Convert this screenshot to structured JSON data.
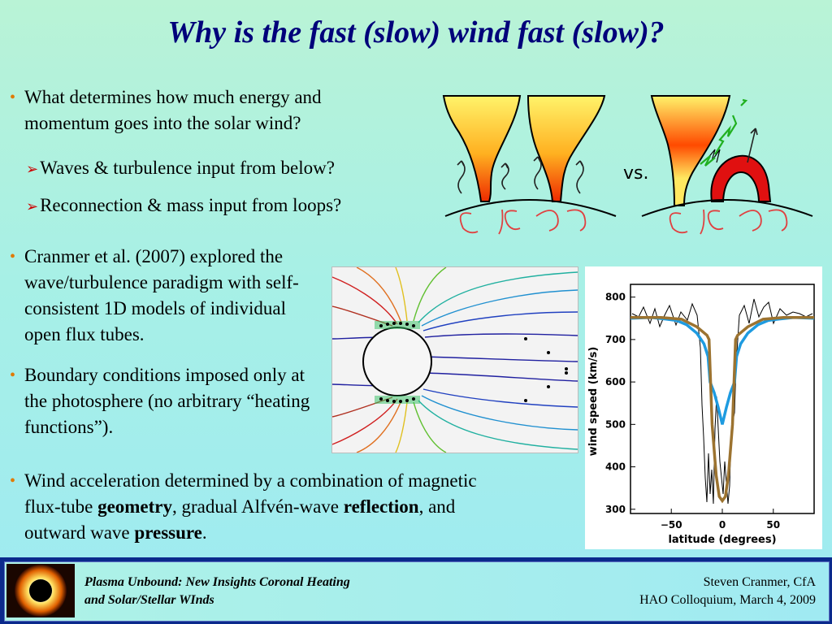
{
  "title": "Why is the fast (slow) wind fast (slow)?",
  "bullets": {
    "b1": "What determines how much energy and momentum goes into the solar wind?",
    "sub1": "Waves & turbulence input from below?",
    "sub2": "Reconnection & mass input from loops?",
    "b2": "Cranmer et al. (2007) explored the wave/turbulence paradigm with self-consistent 1D models of individual open flux tubes.",
    "b3": "Boundary conditions imposed only at the photosphere (no arbitrary “heating functions”).",
    "b4_pre": "Wind acceleration determined by a combination of magnetic flux-tube ",
    "b4_geometry": "geometry",
    "b4_mid": ", gradual Alfvén-wave ",
    "b4_reflection": "reflection",
    "b4_mid2": ", and outward wave ",
    "b4_pressure": "pressure",
    "b4_end": "."
  },
  "diagram": {
    "vs": "vs."
  },
  "chart_data": {
    "type": "line",
    "xlabel": "latitude (degrees)",
    "ylabel": "wind speed (km/s)",
    "xlim": [
      -90,
      90
    ],
    "ylim": [
      290,
      830
    ],
    "xticks": [
      -50,
      0,
      50
    ],
    "yticks": [
      300,
      400,
      500,
      600,
      700,
      800
    ],
    "series": [
      {
        "x": [
          -90,
          -70,
          -55,
          -45,
          -35,
          -25,
          -18,
          -14,
          -12,
          -8,
          -4,
          0,
          4,
          8,
          12,
          14,
          18,
          25,
          35,
          45,
          55,
          70,
          90
        ],
        "y": [
          750,
          752,
          748,
          745,
          735,
          715,
          690,
          660,
          600,
          575,
          540,
          500,
          540,
          575,
          600,
          660,
          690,
          715,
          735,
          745,
          748,
          752,
          750
        ]
      },
      {
        "x": [
          -90,
          -60,
          -40,
          -25,
          -20,
          -15,
          -13,
          -10,
          -6,
          -3,
          0,
          3,
          6,
          10,
          13,
          15,
          20,
          25,
          40,
          60,
          90
        ],
        "y": [
          752,
          752,
          748,
          730,
          720,
          710,
          700,
          500,
          380,
          330,
          320,
          330,
          380,
          500,
          700,
          710,
          720,
          730,
          748,
          752,
          752
        ]
      }
    ]
  },
  "footer": {
    "left_line1": "Plasma Unbound:  New Insights Coronal Heating",
    "left_line2": "and Solar/Stellar WInds",
    "right_line1": "Steven Cranmer,  CfA",
    "right_line2": "HAO Colloquium, March 4, 2009"
  }
}
